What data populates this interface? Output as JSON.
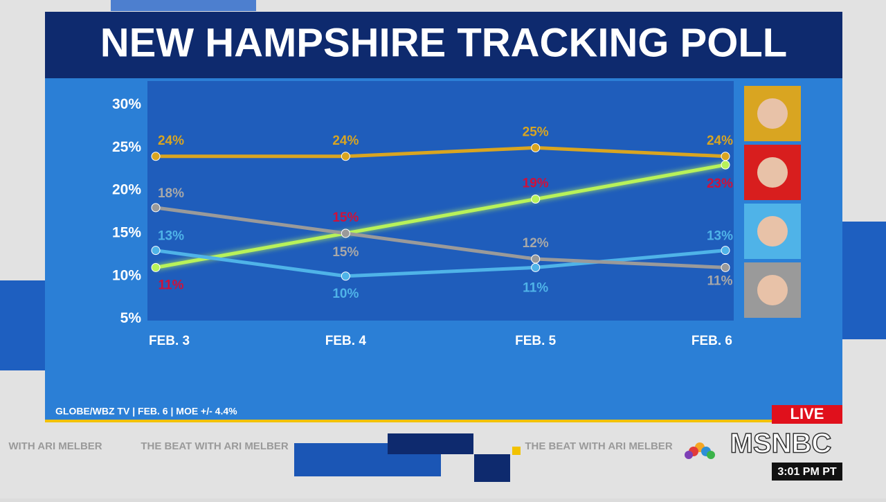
{
  "chart_data": {
    "type": "line",
    "title": "NEW HAMPSHIRE TRACKING POLL",
    "categories": [
      "FEB. 3",
      "FEB. 4",
      "FEB. 5",
      "FEB. 6"
    ],
    "series": [
      {
        "color": "#d9a521",
        "values": [
          24,
          24,
          25,
          24
        ],
        "value_labels": [
          "24%",
          "24%",
          "25%",
          "24%"
        ]
      },
      {
        "color": "#b8f25a",
        "values": [
          11,
          15,
          19,
          23
        ],
        "value_labels": [
          "11%",
          "15%",
          "19%",
          "23%"
        ]
      },
      {
        "color": "#4fb3e8",
        "values": [
          13,
          10,
          11,
          13
        ],
        "value_labels": [
          "13%",
          "10%",
          "11%",
          "13%"
        ]
      },
      {
        "color": "#9a9a9a",
        "values": [
          18,
          15,
          12,
          11
        ],
        "value_labels": [
          "18%",
          "15%",
          "12%",
          "11%"
        ]
      }
    ],
    "ylim": [
      4.8,
      32.8
    ],
    "yticks": [
      {
        "value": 30,
        "label": "30%"
      },
      {
        "value": 25,
        "label": "25%"
      },
      {
        "value": 20,
        "label": "20%"
      },
      {
        "value": 15,
        "label": "15%"
      },
      {
        "value": 10,
        "label": "10%"
      },
      {
        "value": 5,
        "label": "5%"
      }
    ],
    "source": "GLOBE/WBZ TV | FEB. 6 | MOE +/- 4.4%"
  },
  "overlay": {
    "live": "LIVE",
    "network": "MSNBC",
    "time": "3:01 PM PT",
    "ticker": [
      "WITH ARI MELBER",
      "THE BEAT WITH ARI MELBER",
      "THE BEAT WITH ARI MELBER"
    ]
  }
}
